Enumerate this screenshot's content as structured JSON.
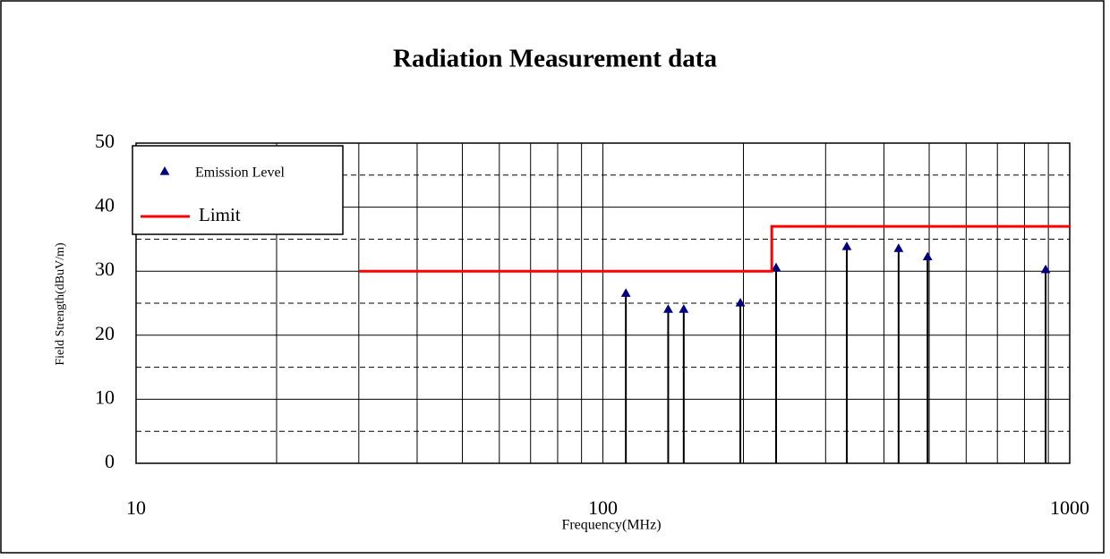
{
  "chart_data": {
    "type": "scatter",
    "title": "Radiation Measurement data",
    "xlabel": "Frequency(MHz)",
    "ylabel": "Field Strength(dBuV/m)",
    "xscale": "log",
    "xlim": [
      10,
      1000
    ],
    "xticks": [
      10,
      100,
      1000
    ],
    "xminor": [
      20,
      30,
      40,
      50,
      60,
      70,
      80,
      90,
      200,
      300,
      400,
      500,
      600,
      700,
      800,
      900
    ],
    "ylim": [
      0,
      50
    ],
    "yticks": [
      0,
      10,
      20,
      30,
      40,
      50
    ],
    "yminor": [
      5,
      15,
      25,
      35,
      45
    ],
    "grid": true,
    "legend": "upper left",
    "series": [
      {
        "name": "Emission Level",
        "type": "stem",
        "color": "#00007f",
        "x": [
          112,
          138,
          149,
          197,
          235,
          333,
          430,
          496,
          888
        ],
        "values": [
          26.5,
          24,
          24,
          25,
          30.5,
          33.8,
          33.5,
          32.2,
          30.2
        ]
      },
      {
        "name": "Limit",
        "type": "line",
        "color": "#ff0000",
        "x": [
          30,
          230,
          230,
          1000
        ],
        "values": [
          30,
          30,
          37,
          37
        ]
      }
    ]
  }
}
